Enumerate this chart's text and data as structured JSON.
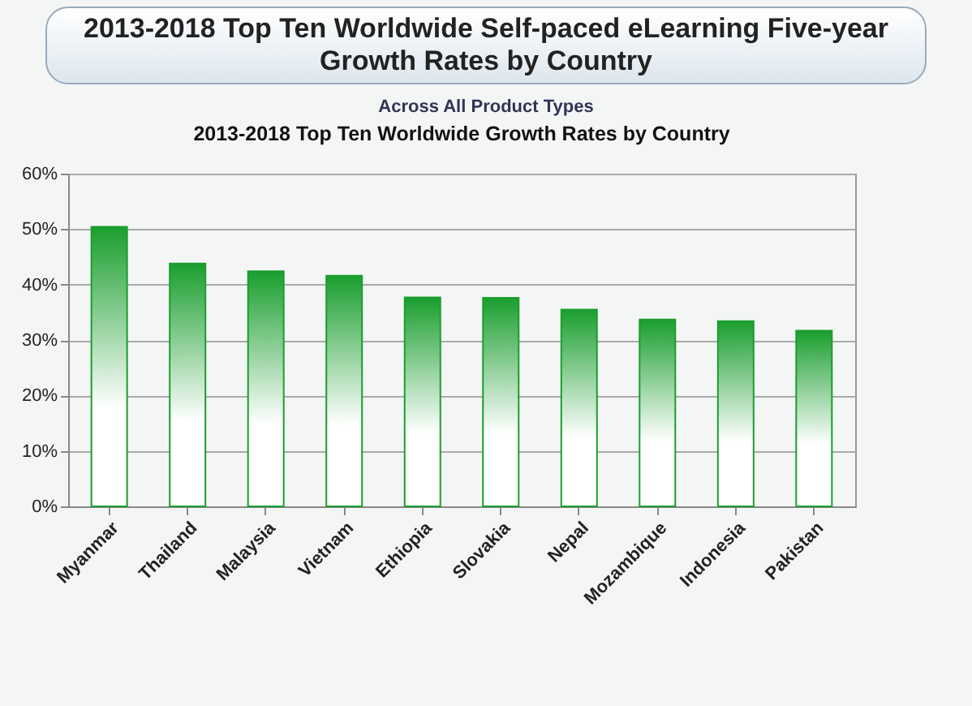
{
  "chart_data": {
    "type": "bar",
    "title": "2013-2018 Top Ten Worldwide Self-paced eLearning Five-year Growth Rates by Country",
    "subtitle": "Across All Product Types",
    "annotations": [
      "2013-2018  Top Ten Worldwide Growth Rates by Country"
    ],
    "categories": [
      "Myanmar",
      "Thailand",
      "Malaysia",
      "Vietnam",
      "Ethiopia",
      "Slovakia",
      "Nepal",
      "Mozambique",
      "Indonesia",
      "Pakistan"
    ],
    "values": [
      50.4,
      43.8,
      42.4,
      41.6,
      37.7,
      37.6,
      35.5,
      33.7,
      33.4,
      31.7
    ],
    "color": "#1a9e2e",
    "ylim": [
      0,
      60
    ],
    "yticks": [
      {
        "value": 0,
        "label": "0%"
      },
      {
        "value": 10,
        "label": "10%"
      },
      {
        "value": 20,
        "label": "20%"
      },
      {
        "value": 30,
        "label": "30%"
      },
      {
        "value": 40,
        "label": "40%"
      },
      {
        "value": 50,
        "label": "50%"
      },
      {
        "value": 60,
        "label": "60%"
      }
    ],
    "grid": "y"
  }
}
